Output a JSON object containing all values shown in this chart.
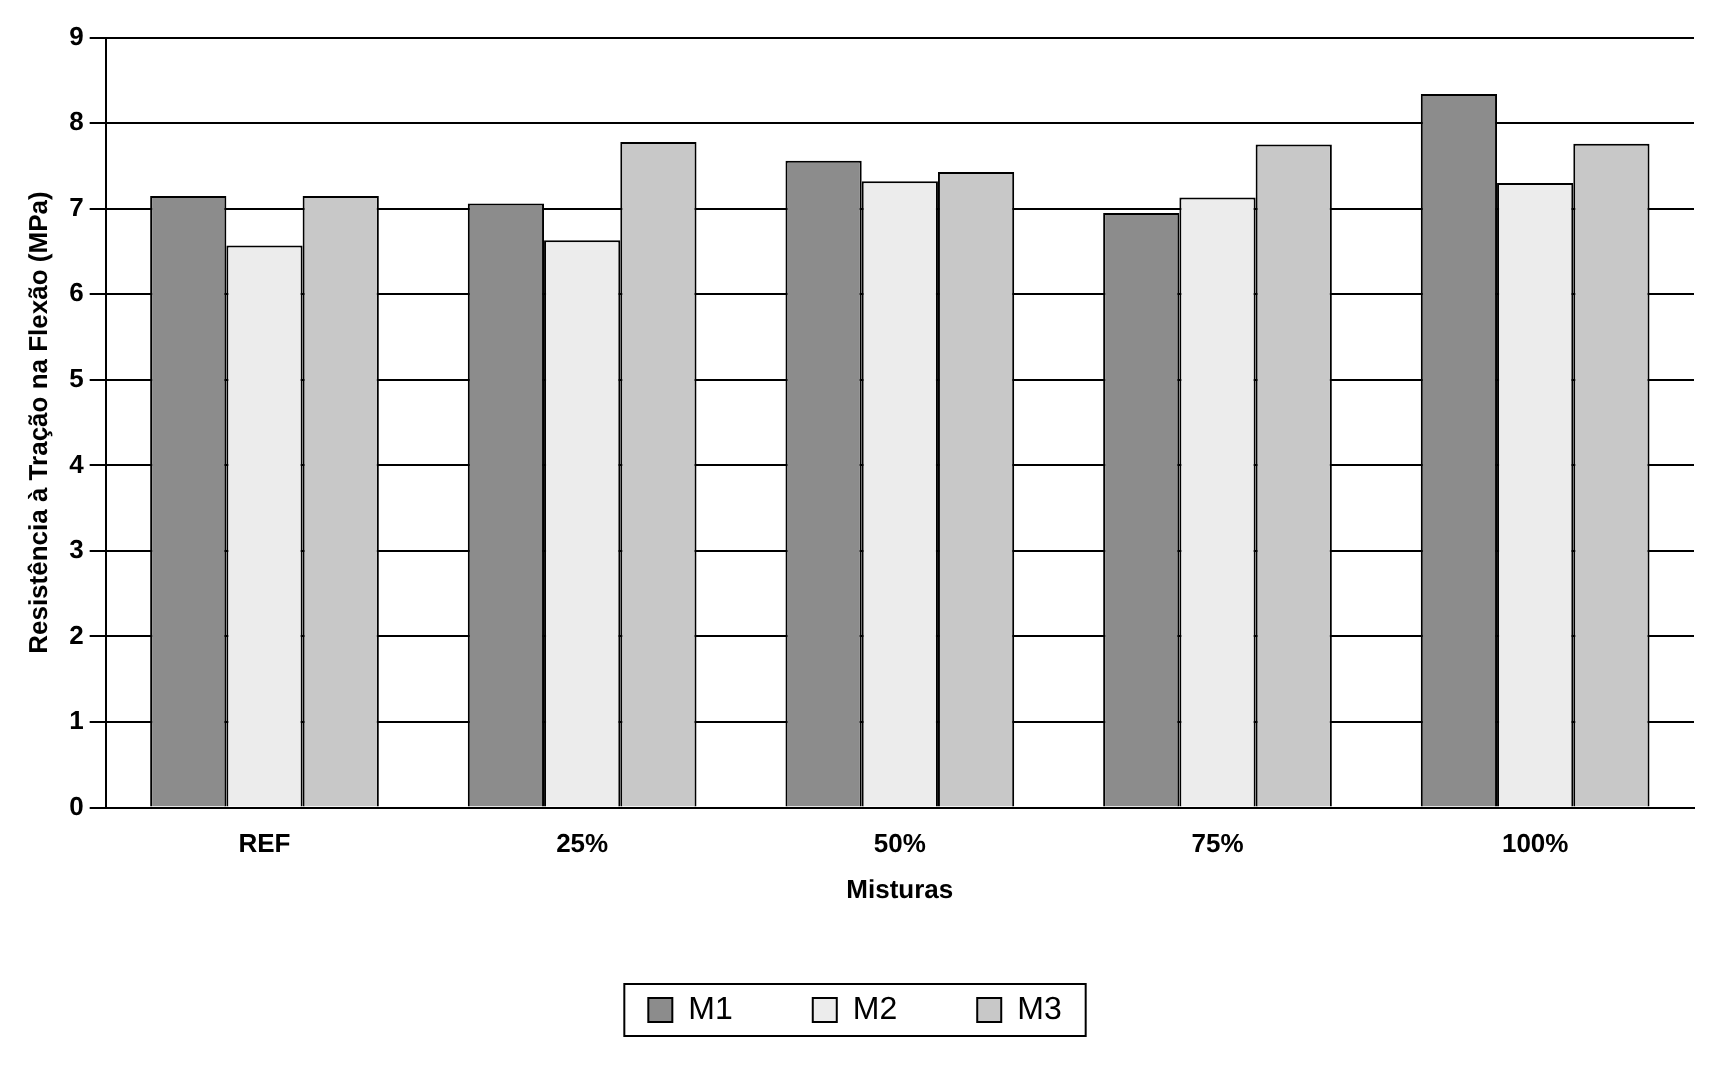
{
  "chart_data": {
    "type": "bar",
    "xlabel": "Misturas",
    "ylabel": "Resistência à Tração na Flexão (MPa)",
    "categories": [
      "REF",
      "25%",
      "50%",
      "75%",
      "100%"
    ],
    "series": [
      {
        "name": "M1",
        "color": "#8c8c8c",
        "values": [
          7.15,
          7.06,
          7.56,
          6.95,
          8.34
        ]
      },
      {
        "name": "M2",
        "color": "#ececec",
        "values": [
          6.57,
          6.63,
          7.32,
          7.13,
          7.3
        ]
      },
      {
        "name": "M3",
        "color": "#c8c8c8",
        "values": [
          7.15,
          7.78,
          7.43,
          7.75,
          7.76
        ]
      }
    ],
    "ylim": [
      0,
      9
    ],
    "yticks": [
      0,
      1,
      2,
      3,
      4,
      5,
      6,
      7,
      8,
      9
    ],
    "grid": "y",
    "legend": "bottom"
  }
}
